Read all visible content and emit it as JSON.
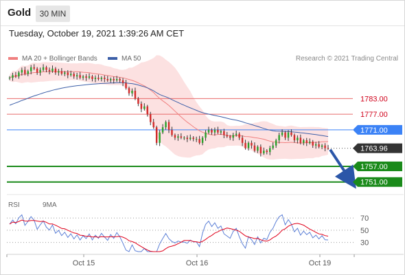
{
  "header": {
    "title": "Gold",
    "timeframe": "30 MIN"
  },
  "datetime": "Tuesday, October 19, 2021 1:39:26 AM CET",
  "legend": {
    "ma20": {
      "label": "MA 20 + Bollinger Bands",
      "color": "#f08080"
    },
    "ma50": {
      "label": "MA 50",
      "color": "#3c5fa8"
    }
  },
  "credit": "Research © 2021 Trading Central",
  "rsi_legend": {
    "rsi": {
      "label": "RSI",
      "color": "#5b7fd6"
    },
    "ma9": {
      "label": "9MA",
      "color": "#e0001a"
    }
  },
  "chart_data": [
    {
      "type": "candlestick",
      "title": "Gold",
      "xlabel": "",
      "ylabel": "",
      "x_ticks": [
        "Oct 15",
        "Oct 16",
        "Oct 19"
      ],
      "ylim": [
        1747.5,
        1795.5
      ],
      "levels": [
        {
          "value": 1783.0,
          "label": "1783.00",
          "color": "#e86a6a",
          "kind": "resistance"
        },
        {
          "value": 1777.0,
          "label": "1777.00",
          "color": "#e86a6a",
          "kind": "resistance"
        },
        {
          "value": 1771.0,
          "label": "1771.00",
          "color": "#3b82f6",
          "kind": "pivot"
        },
        {
          "value": 1763.96,
          "label": "1763.96",
          "color": "#333333",
          "kind": "last"
        },
        {
          "value": 1757.0,
          "label": "1757.00",
          "color": "#1a8a1a",
          "kind": "support"
        },
        {
          "value": 1751.0,
          "label": "1751.00",
          "color": "#1a8a1a",
          "kind": "support"
        }
      ],
      "close": [
        1791,
        1792,
        1791.5,
        1793,
        1794,
        1792.5,
        1793.5,
        1795,
        1794.5,
        1793,
        1794,
        1795,
        1794,
        1793.5,
        1794.5,
        1793,
        1793.5,
        1792.5,
        1793,
        1792,
        1792.5,
        1791.5,
        1792,
        1791,
        1791.5,
        1791,
        1791.5,
        1790.5,
        1791,
        1790.5,
        1791,
        1790.5,
        1790,
        1790.5,
        1790,
        1790.5,
        1790,
        1789,
        1787,
        1785,
        1786,
        1783,
        1781,
        1779,
        1780,
        1777,
        1774,
        1772,
        1766,
        1770,
        1772,
        1774,
        1771,
        1769,
        1768,
        1768.5,
        1768,
        1768,
        1767.5,
        1768,
        1767.5,
        1767.5,
        1766,
        1768,
        1770,
        1771,
        1770,
        1771,
        1770,
        1770.5,
        1769,
        1768.5,
        1768,
        1769,
        1769.5,
        1768,
        1766,
        1764,
        1766,
        1765,
        1763,
        1764.5,
        1762,
        1763,
        1762.5,
        1764,
        1765,
        1767,
        1769,
        1770,
        1768,
        1770,
        1769,
        1767,
        1768,
        1766,
        1767,
        1766,
        1766.5,
        1765,
        1765.5,
        1764.5,
        1765,
        1764,
        1763.96
      ],
      "ma50_start": 1780
    },
    {
      "type": "line",
      "title": "RSI",
      "ylim": [
        15,
        78
      ],
      "y_ticks": [
        70,
        50,
        30
      ],
      "series": [
        {
          "name": "RSI",
          "color": "#5b7fd6",
          "smooth": 1
        },
        {
          "name": "9MA",
          "color": "#e0001a",
          "smooth": 9
        }
      ]
    }
  ]
}
